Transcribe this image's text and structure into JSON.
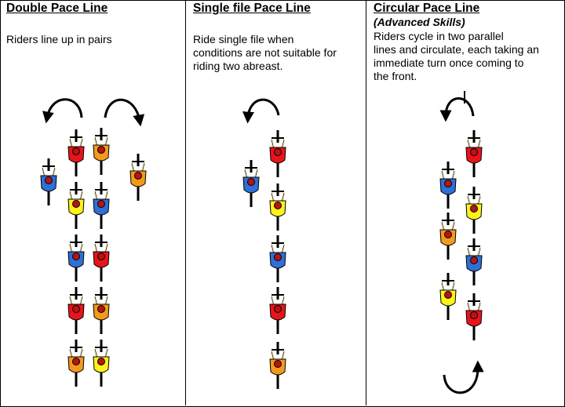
{
  "columns": [
    {
      "title": "Double Pace Line",
      "subtitle": "",
      "description": [
        "Riders line up in pairs"
      ]
    },
    {
      "title": "Single file Pace Line",
      "subtitle": "",
      "description": [
        "Ride single file when",
        "conditions are not suitable for",
        "riding two abreast."
      ]
    },
    {
      "title": "Circular Pace Line",
      "subtitle": "(Advanced Skills)",
      "description": [
        "Riders cycle in two parallel",
        "lines and circulate, each taking an",
        "immediate turn once coming to",
        "the front."
      ]
    }
  ],
  "colors": {
    "red": "#e8141a",
    "orange": "#f39a1c",
    "yellow": "#fff21a",
    "blue": "#2f6fd6",
    "black": "#000000"
  },
  "diagrams": {
    "double": {
      "riders": [
        "blue",
        "red",
        "orange",
        "orange",
        "yellow",
        "blue",
        "blue",
        "red",
        "red",
        "orange",
        "orange",
        "yellow"
      ]
    },
    "single": {
      "riders": [
        "blue",
        "red",
        "yellow",
        "blue",
        "red",
        "orange"
      ]
    },
    "circular": {
      "riders": [
        "red",
        "blue",
        "yellow",
        "orange",
        "blue",
        "yellow",
        "red"
      ]
    }
  }
}
